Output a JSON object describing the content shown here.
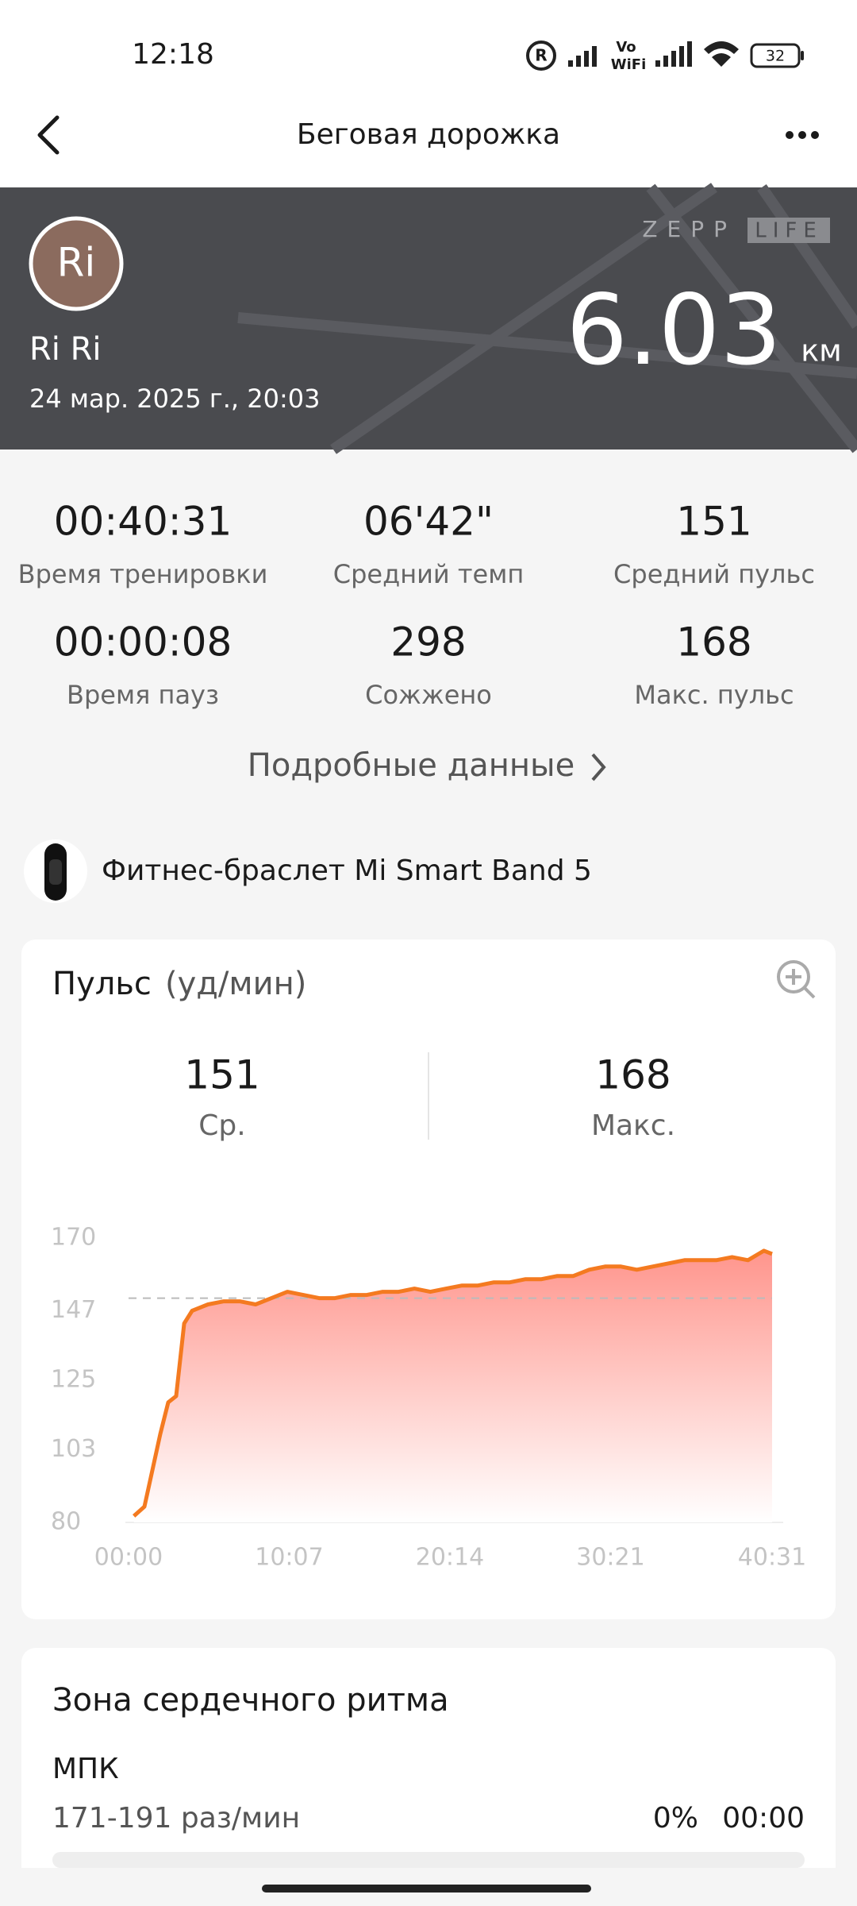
{
  "status_bar": {
    "time": "12:18",
    "vowifi_top": "Vo",
    "vowifi_bottom": "WiFi",
    "battery": "32"
  },
  "header": {
    "title": "Беговая дорожка"
  },
  "banner": {
    "avatar": "Ri",
    "name": "Ri Ri",
    "date": "24 мар. 2025 г., 20:03",
    "brand_left": "ZEPP",
    "brand_right": "LIFE",
    "distance": "6.03",
    "unit": "км"
  },
  "stats": [
    {
      "value": "00:40:31",
      "label": "Время тренировки"
    },
    {
      "value": "06'42\"",
      "label": "Средний темп"
    },
    {
      "value": "151",
      "label": "Средний пульс"
    },
    {
      "value": "00:00:08",
      "label": "Время пауз"
    },
    {
      "value": "298",
      "label": "Сожжено"
    },
    {
      "value": "168",
      "label": "Макс. пульс"
    }
  ],
  "details_link": "Подробные данные",
  "device": "Фитнес-браслет Mi Smart Band 5",
  "pulse_card": {
    "title": "Пульс",
    "unit": "(уд/мин)",
    "summary": [
      {
        "value": "151",
        "label": "Ср."
      },
      {
        "value": "168",
        "label": "Макс."
      }
    ]
  },
  "chart_data": {
    "type": "line",
    "color": "#f47a20",
    "x": [
      20,
      60,
      120,
      150,
      180,
      210,
      240,
      300,
      360,
      420,
      480,
      540,
      600,
      660,
      720,
      780,
      840,
      900,
      960,
      1020,
      1080,
      1140,
      1200,
      1260,
      1320,
      1380,
      1440,
      1500,
      1560,
      1620,
      1680,
      1740,
      1800,
      1860,
      1920,
      1980,
      2040,
      2100,
      2160,
      2220,
      2280,
      2340,
      2400,
      2431
    ],
    "values": [
      82,
      85,
      108,
      118,
      120,
      143,
      147,
      149,
      150,
      150,
      149,
      151,
      153,
      152,
      151,
      151,
      152,
      152,
      153,
      153,
      154,
      153,
      154,
      155,
      155,
      156,
      156,
      157,
      157,
      158,
      158,
      160,
      161,
      161,
      160,
      161,
      162,
      163,
      163,
      163,
      164,
      163,
      166,
      165
    ],
    "xlim": [
      0,
      2431
    ],
    "xticks": [
      {
        "value": 0,
        "label": "00:00"
      },
      {
        "value": 607,
        "label": "10:07"
      },
      {
        "value": 1214,
        "label": "20:14"
      },
      {
        "value": 1821,
        "label": "30:21"
      },
      {
        "value": 2431,
        "label": "40:31"
      }
    ],
    "ylim": [
      80,
      170
    ],
    "yticks": [
      80,
      103,
      125,
      147,
      170
    ],
    "reference_line": 151
  },
  "zone": {
    "title": "Зона сердечного ритма",
    "name": "МПК",
    "range": "171-191 раз/мин",
    "percent": "0%",
    "time": "00:00"
  }
}
